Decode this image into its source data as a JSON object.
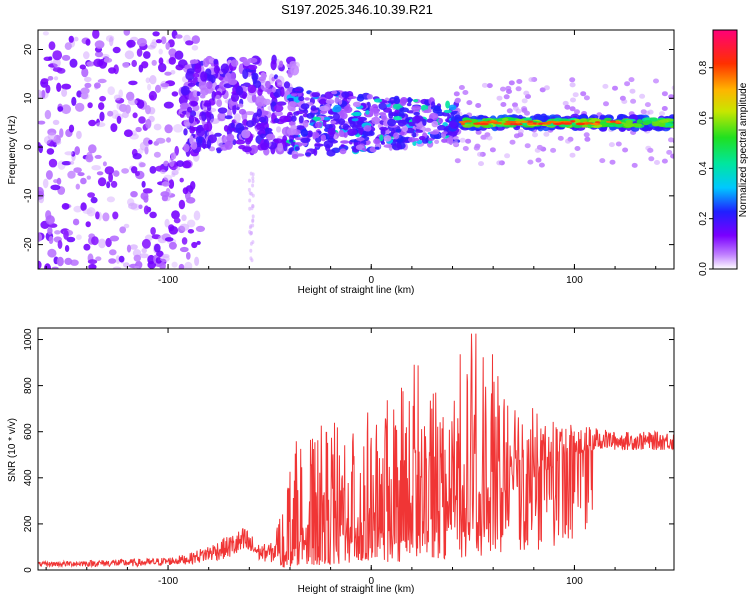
{
  "title": "S197.2025.346.10.39.R21",
  "chart_data": [
    {
      "type": "heatmap",
      "name": "spectrogram",
      "xlabel": "Height of straight line (km)",
      "ylabel": "Frequency (Hz)",
      "xlim": [
        -164,
        149
      ],
      "ylim": [
        -25,
        24
      ],
      "xticks": [
        -100,
        0,
        100
      ],
      "yticks": [
        -20,
        -10,
        0,
        10,
        20
      ],
      "xtick_labels": [
        "-100",
        "0",
        "100"
      ],
      "ytick_labels": [
        "-20",
        "-10",
        "0",
        "10",
        "20"
      ],
      "colorbar": {
        "label": "Normalized spectral amplitude",
        "range": [
          0,
          0.95
        ],
        "ticks": [
          0,
          0.2,
          0.4,
          0.6,
          0.8
        ],
        "tick_labels": [
          "0.0",
          "0.2",
          "0.4",
          "0.6",
          "0.8"
        ],
        "colormap": "rainbow (white-purple-blue-cyan-green-yellow-orange-red-magenta)"
      },
      "features": [
        {
          "description": "scattered weak energy",
          "x_range": [
            -164,
            -90
          ],
          "freq_range": [
            -25,
            24
          ],
          "amplitude": 0.05
        },
        {
          "description": "broad band",
          "x_range": [
            -90,
            -40
          ],
          "freq_range": [
            0,
            18
          ],
          "amplitude": 0.1
        },
        {
          "description": "narrowing band",
          "x_range": [
            -40,
            40
          ],
          "freq_range": [
            1,
            10
          ],
          "amplitude": 0.2
        },
        {
          "description": "strong tone",
          "x_range": [
            40,
            149
          ],
          "freq_range": [
            4,
            6
          ],
          "amplitude": 0.8,
          "center_freq": 5
        }
      ]
    },
    {
      "type": "line",
      "name": "snr",
      "xlabel": "Height of straight line (km)",
      "ylabel": "SNR (10 * v/v)",
      "xlim": [
        -164,
        149
      ],
      "ylim": [
        0,
        1050
      ],
      "xticks": [
        -100,
        0,
        100
      ],
      "yticks": [
        0,
        200,
        400,
        600,
        800,
        1000
      ],
      "xtick_labels": [
        "-100",
        "0",
        "100"
      ],
      "ytick_labels": [
        "0",
        "200",
        "400",
        "600",
        "800",
        "1000"
      ],
      "color": "#f03535",
      "envelope": {
        "x": [
          -164,
          -130,
          -110,
          -100,
          -90,
          -80,
          -70,
          -62,
          -55,
          -48,
          -42,
          -38,
          -30,
          -20,
          -10,
          0,
          10,
          20,
          30,
          40,
          50,
          60,
          70,
          80,
          90,
          100,
          110,
          120,
          130,
          149
        ],
        "base": [
          15,
          15,
          15,
          20,
          25,
          35,
          50,
          60,
          40,
          30,
          50,
          80,
          90,
          100,
          110,
          120,
          150,
          200,
          220,
          250,
          280,
          300,
          350,
          400,
          450,
          500,
          520,
          520,
          520,
          520
        ],
        "peak": [
          35,
          45,
          50,
          55,
          70,
          110,
          150,
          190,
          110,
          120,
          380,
          560,
          620,
          640,
          660,
          700,
          750,
          950,
          880,
          880,
          1050,
          950,
          800,
          700,
          660,
          640,
          620,
          600,
          600,
          600
        ]
      }
    }
  ]
}
